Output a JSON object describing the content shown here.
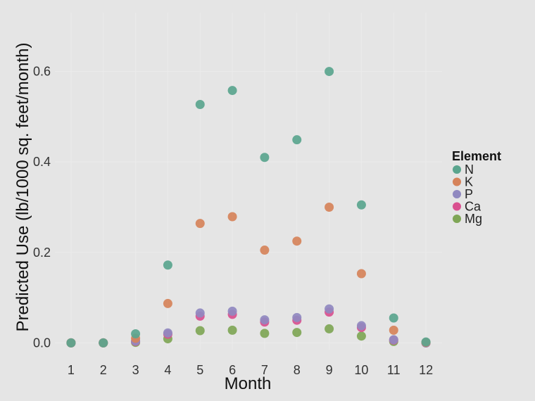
{
  "chart_data": {
    "type": "scatter",
    "xlabel": "Month",
    "ylabel": "Predicted Use (lb/1000 sq. feet/month)",
    "x": [
      1,
      2,
      3,
      4,
      5,
      6,
      7,
      8,
      9,
      10,
      11,
      12
    ],
    "xlim": [
      0.5,
      12.5
    ],
    "ylim": [
      -0.015,
      0.73
    ],
    "yticks": [
      0.0,
      0.2,
      0.4,
      0.6
    ],
    "ytick_labels": [
      "0.0",
      "0.2",
      "0.4",
      "0.6"
    ],
    "xtick_labels": [
      "1",
      "2",
      "3",
      "4",
      "5",
      "6",
      "7",
      "8",
      "9",
      "10",
      "11",
      "12"
    ],
    "grid": true,
    "legend": {
      "title": "Element",
      "placement": "right"
    },
    "series": [
      {
        "name": "N",
        "color": "#5aa58e",
        "values": [
          0.0,
          0.0,
          0.02,
          0.172,
          0.527,
          0.558,
          0.41,
          0.449,
          0.6,
          0.305,
          0.055,
          0.002
        ]
      },
      {
        "name": "K",
        "color": "#d6835a",
        "values": [
          0.0,
          0.0,
          0.01,
          0.087,
          0.264,
          0.279,
          0.205,
          0.225,
          0.3,
          0.153,
          0.028,
          0.001
        ]
      },
      {
        "name": "P",
        "color": "#9089c0",
        "values": [
          0.0,
          0.0,
          0.004,
          0.022,
          0.066,
          0.07,
          0.051,
          0.056,
          0.075,
          0.038,
          0.007,
          0.0
        ]
      },
      {
        "name": "Ca",
        "color": "#d9508f",
        "values": [
          0.0,
          0.0,
          0.003,
          0.019,
          0.059,
          0.063,
          0.046,
          0.05,
          0.068,
          0.034,
          0.006,
          0.0
        ]
      },
      {
        "name": "Mg",
        "color": "#7fa656",
        "values": [
          0.0,
          0.0,
          0.001,
          0.009,
          0.027,
          0.028,
          0.021,
          0.023,
          0.031,
          0.015,
          0.003,
          0.0
        ]
      }
    ]
  }
}
